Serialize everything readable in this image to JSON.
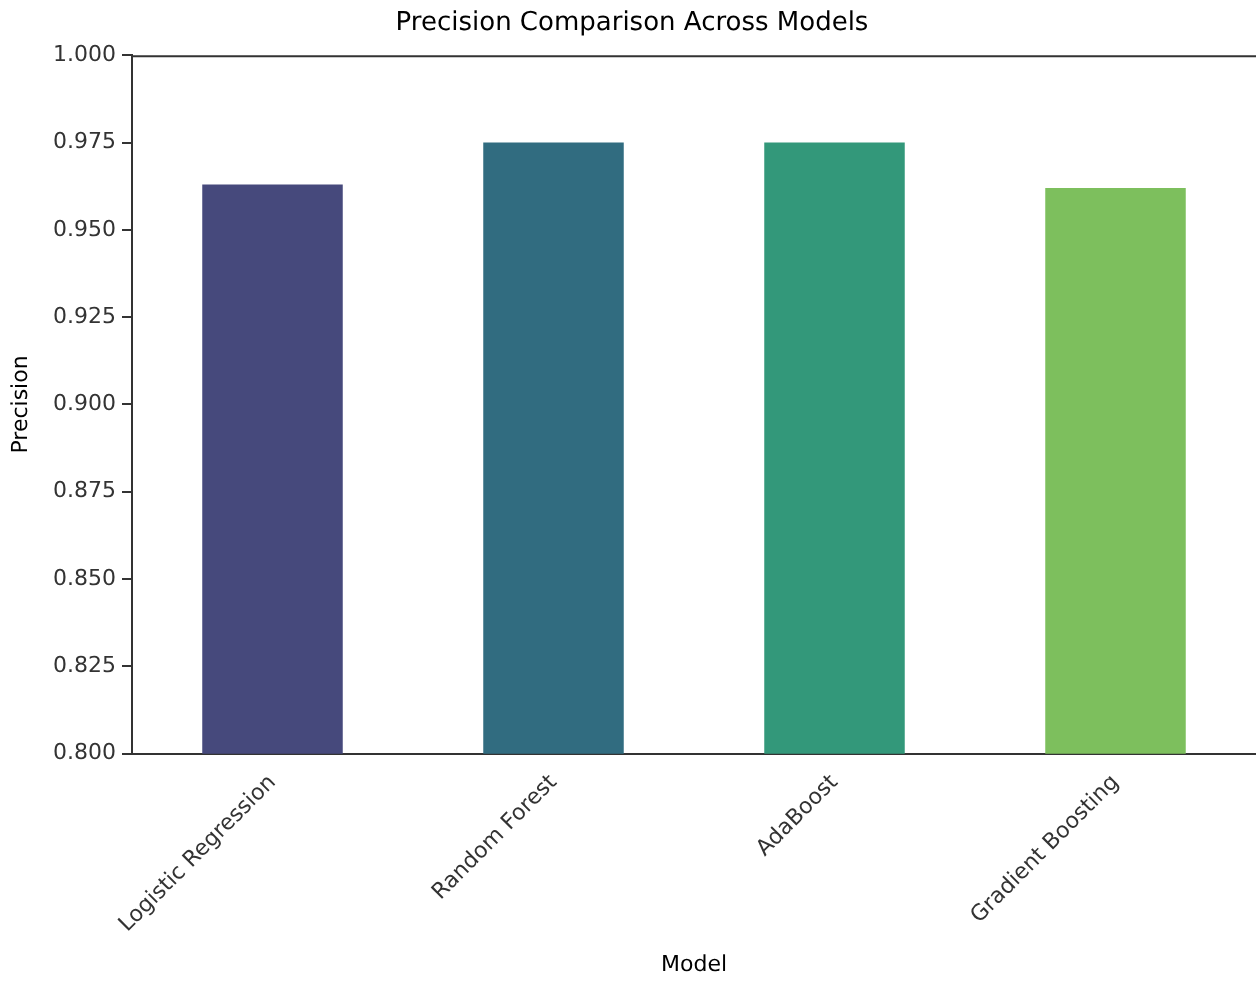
{
  "chart_data": {
    "type": "bar",
    "title": "Precision Comparison Across Models",
    "xlabel": "Model",
    "ylabel": "Precision",
    "categories": [
      "Logistic Regression",
      "Random Forest",
      "AdaBoost",
      "Gradient Boosting"
    ],
    "values": [
      0.963,
      0.975,
      0.975,
      0.962
    ],
    "colors": [
      "#46497c",
      "#316c80",
      "#33987a",
      "#7dbf5d"
    ],
    "ylim": [
      0.8,
      1.0
    ],
    "yticks": [
      {
        "value": 0.8,
        "label": "0.800"
      },
      {
        "value": 0.825,
        "label": "0.825"
      },
      {
        "value": 0.85,
        "label": "0.850"
      },
      {
        "value": 0.875,
        "label": "0.875"
      },
      {
        "value": 0.9,
        "label": "0.900"
      },
      {
        "value": 0.925,
        "label": "0.925"
      },
      {
        "value": 0.95,
        "label": "0.950"
      },
      {
        "value": 0.975,
        "label": "0.975"
      },
      {
        "value": 1.0,
        "label": "1.000"
      }
    ],
    "grid": false,
    "legend": false
  }
}
